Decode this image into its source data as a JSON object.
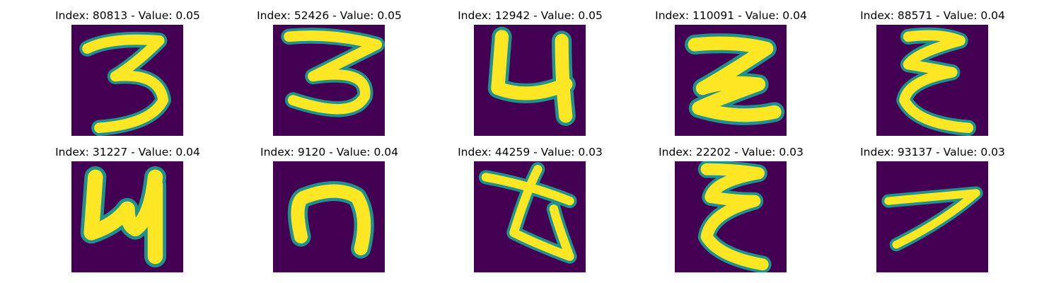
{
  "figure": {
    "panels": [
      {
        "index": 80813,
        "value": "0.05",
        "title": "Index: 80813 - Value: 0.05",
        "glyph": "3"
      },
      {
        "index": 52426,
        "value": "0.05",
        "title": "Index: 52426 - Value: 0.05",
        "glyph": "3"
      },
      {
        "index": 12942,
        "value": "0.05",
        "title": "Index: 12942 - Value: 0.05",
        "glyph": "4"
      },
      {
        "index": 110091,
        "value": "0.04",
        "title": "Index: 110091 - Value: 0.04",
        "glyph": "Z"
      },
      {
        "index": 88571,
        "value": "0.04",
        "title": "Index: 88571 - Value: 0.04",
        "glyph": "epsilon"
      },
      {
        "index": 31227,
        "value": "0.04",
        "title": "Index: 31227 - Value: 0.04",
        "glyph": "4"
      },
      {
        "index": 9120,
        "value": "0.04",
        "title": "Index: 9120 - Value: 0.04",
        "glyph": "n"
      },
      {
        "index": 44259,
        "value": "0.03",
        "title": "Index: 44259 - Value: 0.03",
        "glyph": "scribble"
      },
      {
        "index": 22202,
        "value": "0.03",
        "title": "Index: 22202 - Value: 0.03",
        "glyph": "epsilon"
      },
      {
        "index": 93137,
        "value": "0.03",
        "title": "Index: 93137 - Value: 0.03",
        "glyph": "7"
      }
    ],
    "colors": {
      "background": "#440154",
      "stroke_core": "#fde725",
      "stroke_edge": "#21918c"
    }
  }
}
